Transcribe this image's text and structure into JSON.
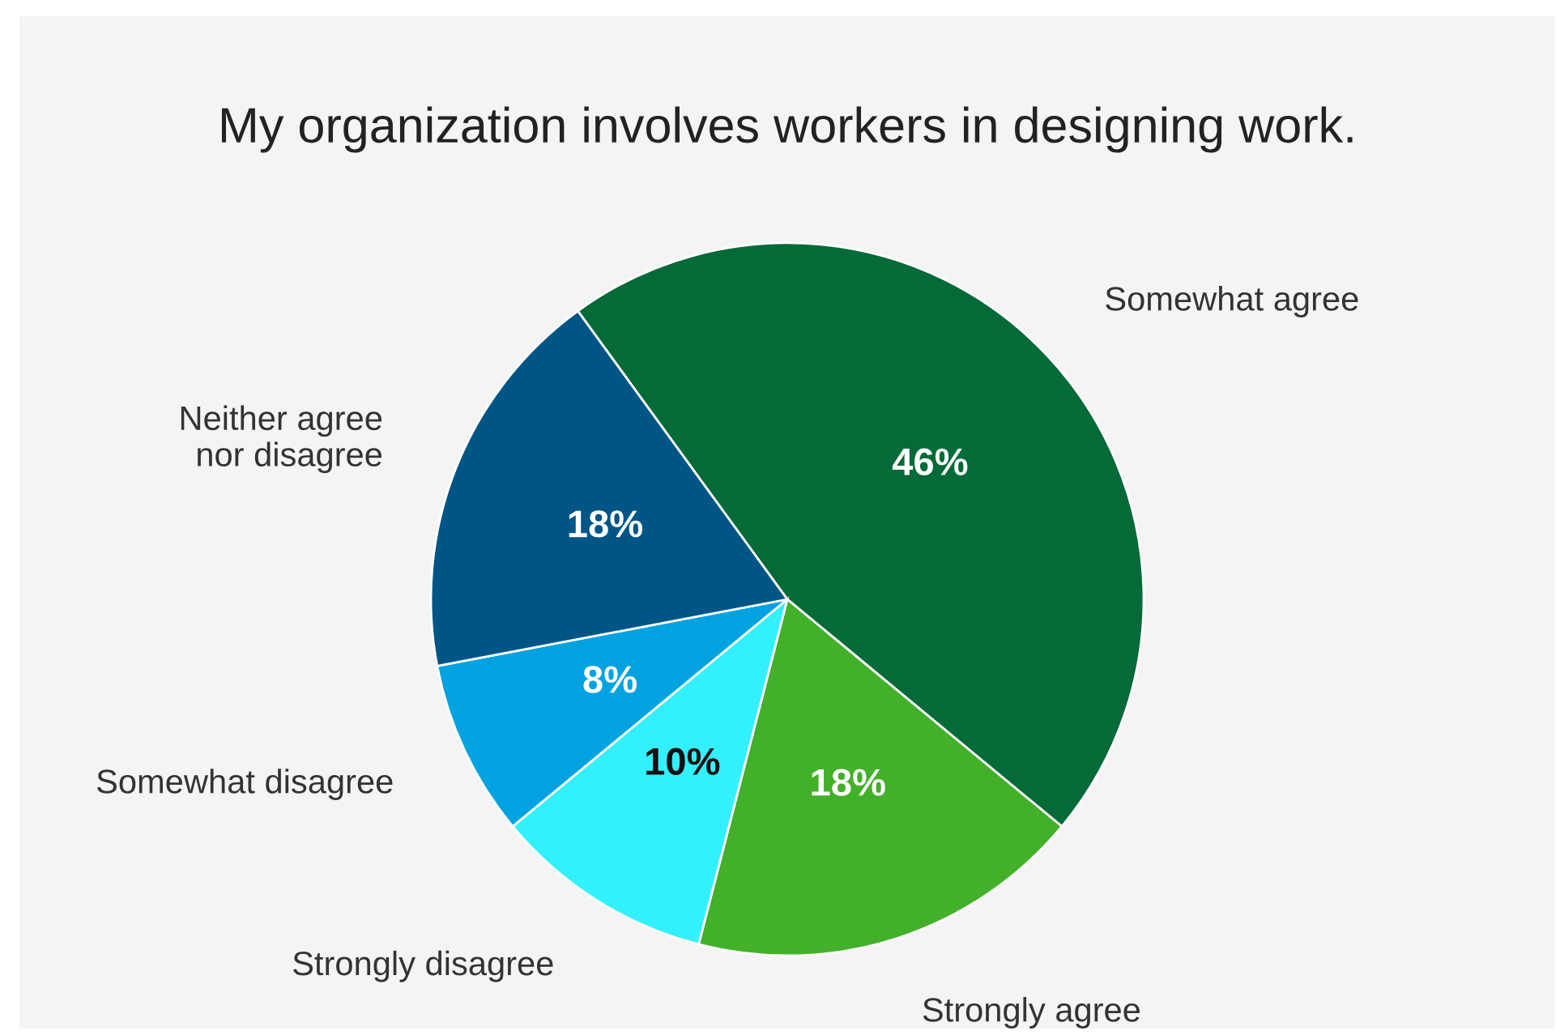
{
  "chart_data": {
    "type": "pie",
    "title": "My organization involves workers in designing work.",
    "categories": [
      "Somewhat agree",
      "Strongly agree",
      "Strongly disagree",
      "Somewhat disagree",
      "Neither agree\nnor disagree"
    ],
    "values": [
      46,
      18,
      10,
      8,
      18
    ],
    "colors": [
      "#046a38",
      "#43b02a",
      "#33f0ff",
      "#00a3e0",
      "#005587"
    ],
    "value_labels": [
      "46%",
      "18%",
      "10%",
      "8%",
      "18%"
    ]
  }
}
